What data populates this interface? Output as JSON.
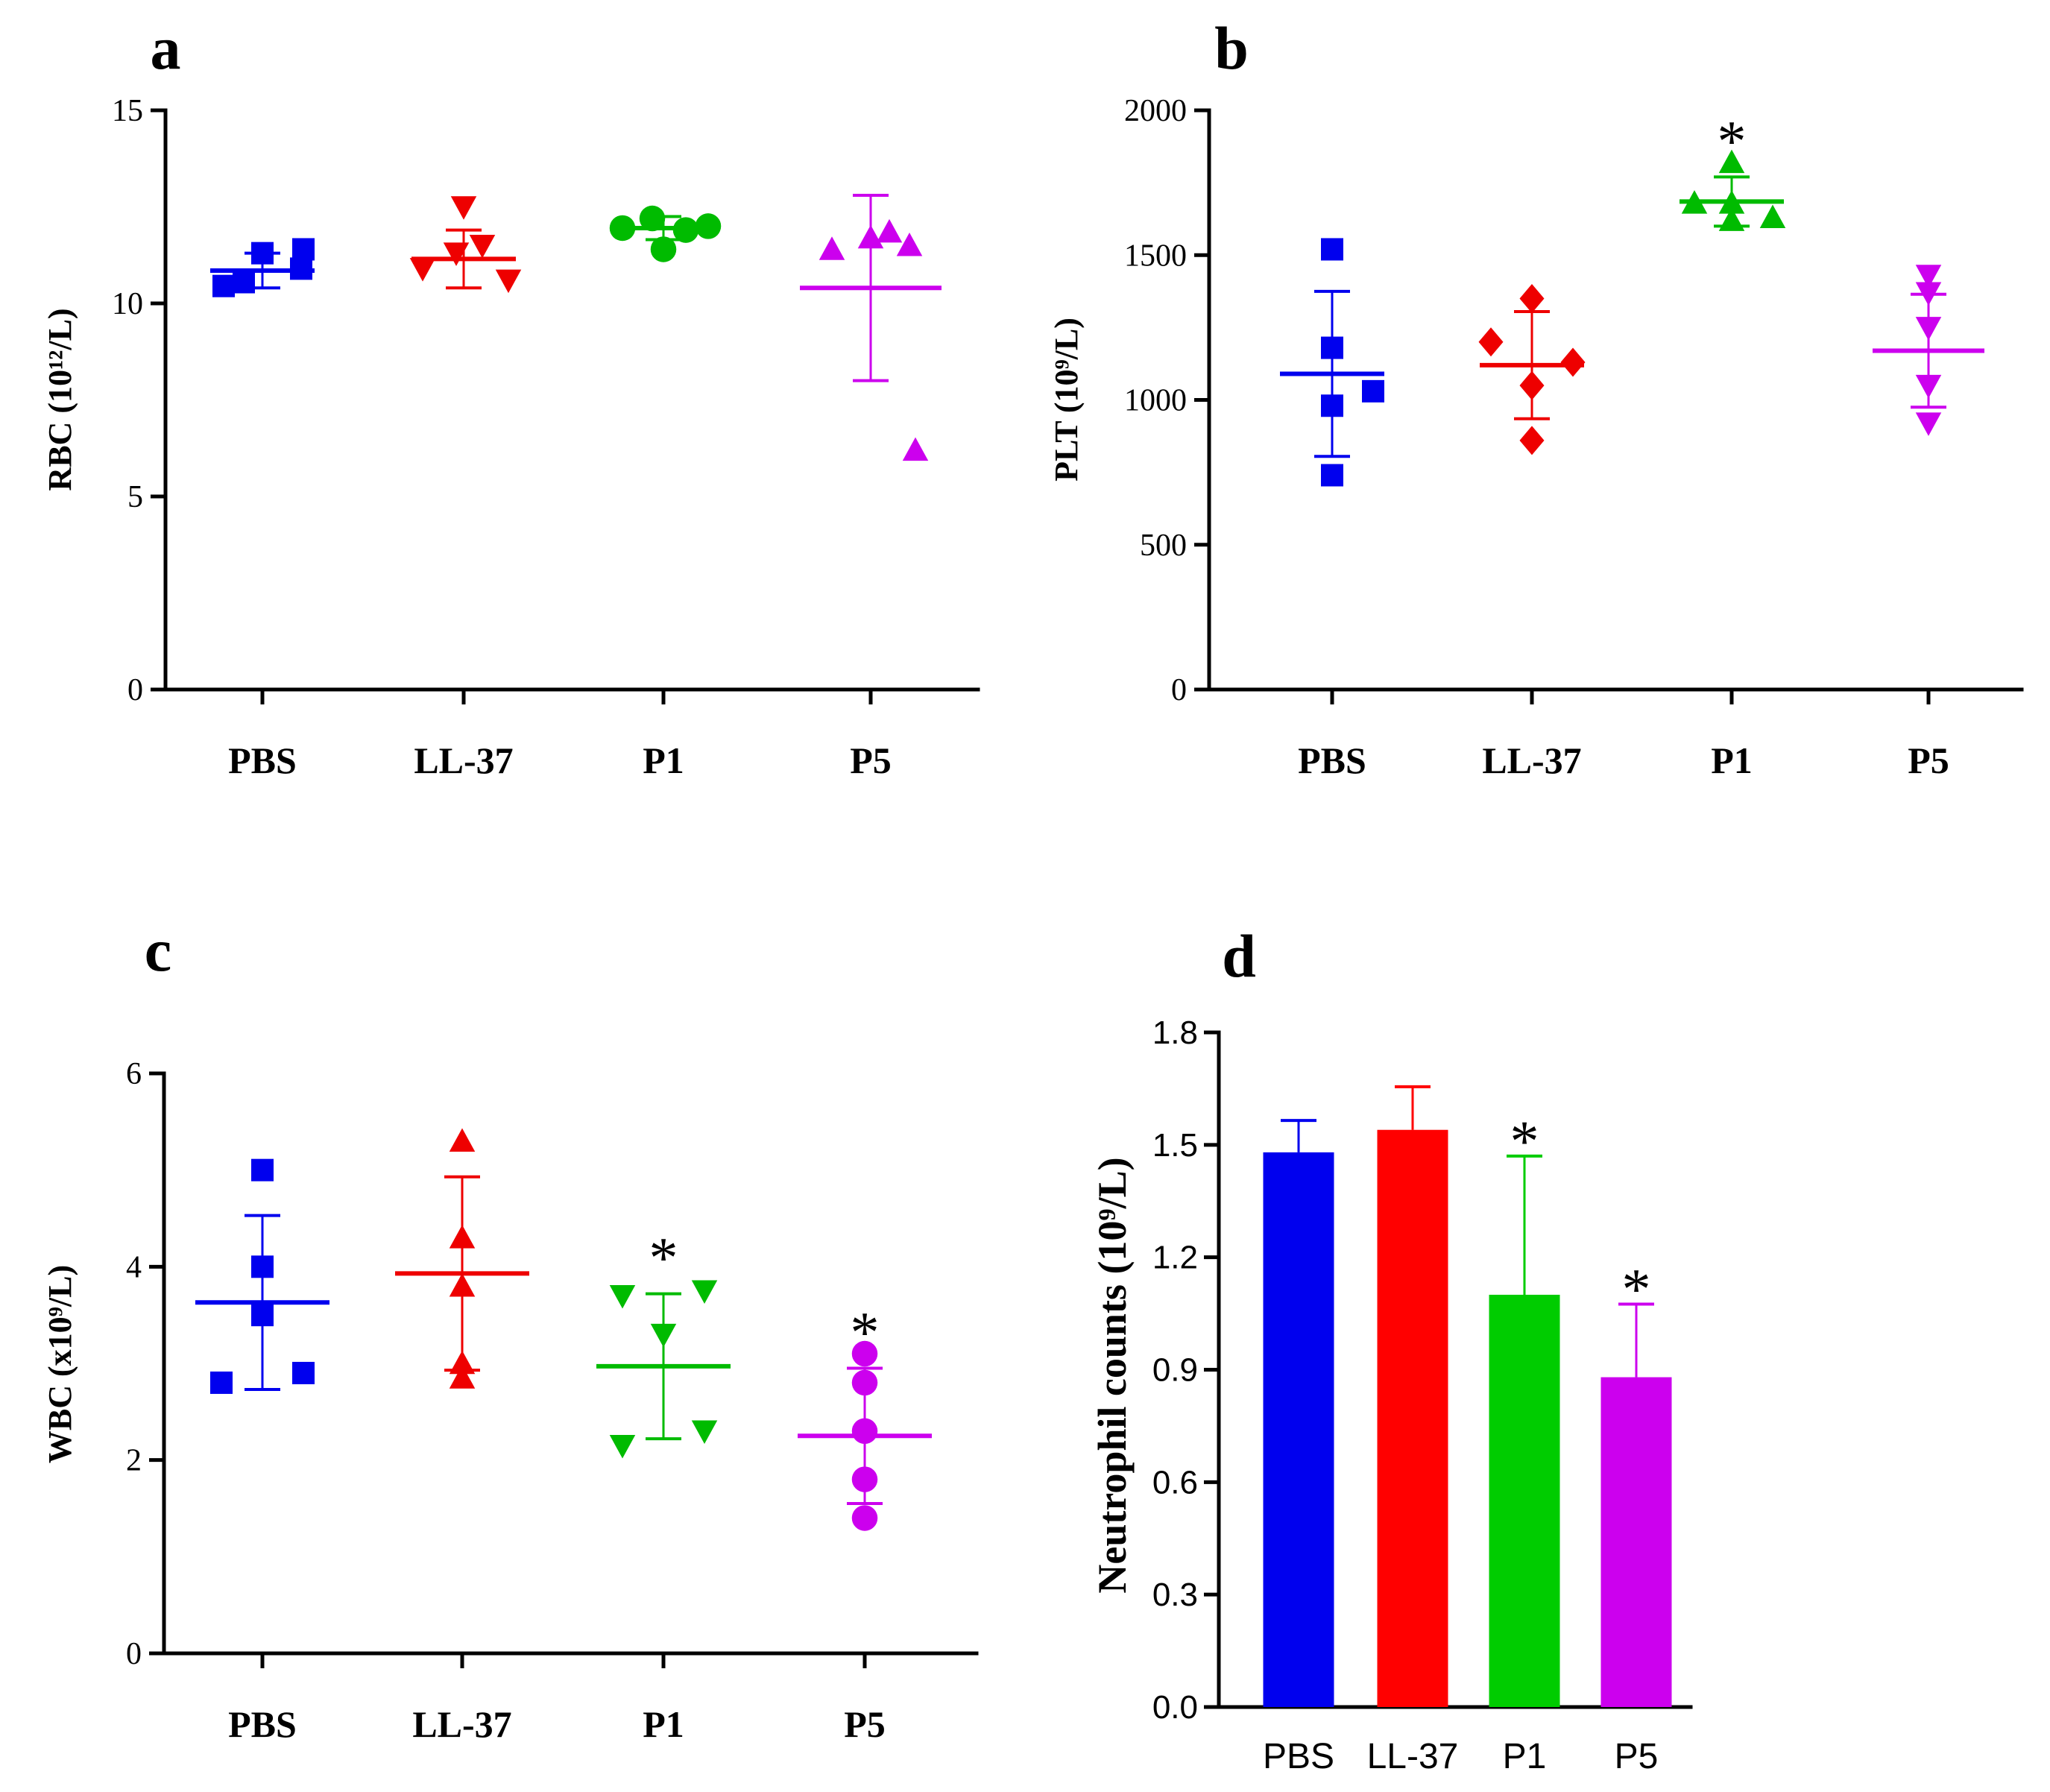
{
  "chart_data": [
    {
      "panel": "a",
      "type": "scatter",
      "ylabel": "RBC (10¹²/L)",
      "ylim": [
        0,
        15
      ],
      "yticks": [
        "0",
        "5",
        "10",
        "15"
      ],
      "categories": [
        "PBS",
        "LL-37",
        "P1",
        "P5"
      ],
      "colors": [
        "#0000ee",
        "#ee0000",
        "#00bb00",
        "#cc00ee"
      ],
      "markers": [
        "square",
        "triangle-down",
        "circle",
        "triangle-up"
      ],
      "points": [
        [
          10.45,
          10.9,
          11.3,
          10.55,
          11.4
        ],
        [
          10.9,
          11.3,
          12.5,
          11.5,
          10.6
        ],
        [
          11.95,
          12.2,
          11.4,
          11.9,
          12.0
        ],
        [
          11.4,
          11.5,
          11.7,
          11.85,
          6.2
        ]
      ],
      "mean": [
        10.85,
        11.15,
        11.95,
        10.4
      ],
      "err": [
        0.45,
        0.75,
        0.3,
        2.4
      ],
      "annotations": [
        "",
        "",
        "",
        ""
      ]
    },
    {
      "panel": "b",
      "type": "scatter",
      "ylabel": "PLT (10⁹/L)",
      "ylim": [
        0,
        2000
      ],
      "yticks": [
        "0",
        "500",
        "1000",
        "1500",
        "2000"
      ],
      "categories": [
        "PBS",
        "LL-37",
        "P1",
        "P5"
      ],
      "colors": [
        "#0000ee",
        "#ee0000",
        "#00bb00",
        "#cc00ee"
      ],
      "markers": [
        "square",
        "diamond",
        "triangle-up",
        "triangle-down"
      ],
      "points": [
        [
          1520,
          1180,
          1030,
          980,
          740
        ],
        [
          1200,
          1350,
          1130,
          1050,
          860
        ],
        [
          1680,
          1820,
          1680,
          1630,
          1620
        ],
        [
          1430,
          1370,
          1250,
          1050,
          920
        ]
      ],
      "mean": [
        1090,
        1120,
        1685,
        1170
      ],
      "err": [
        285,
        185,
        85,
        195
      ],
      "annotations": [
        "",
        "",
        "*",
        ""
      ]
    },
    {
      "panel": "c",
      "type": "scatter",
      "ylabel": "WBC (x10⁹/L)",
      "ylim": [
        0,
        6
      ],
      "yticks": [
        "0",
        "2",
        "4",
        "6"
      ],
      "categories": [
        "PBS",
        "LL-37",
        "P1",
        "P5"
      ],
      "colors": [
        "#0000ee",
        "#ee0000",
        "#00bb00",
        "#cc00ee"
      ],
      "markers": [
        "square",
        "triangle-up",
        "triangle-down",
        "circle"
      ],
      "points": [
        [
          5.0,
          4.0,
          3.5,
          2.9,
          2.8
        ],
        [
          5.3,
          4.3,
          3.8,
          3.0,
          2.85
        ],
        [
          3.7,
          3.75,
          3.3,
          2.3,
          2.15
        ],
        [
          3.1,
          2.8,
          2.3,
          1.8,
          1.4
        ]
      ],
      "mean": [
        3.63,
        3.93,
        2.97,
        2.25
      ],
      "err": [
        0.9,
        1.0,
        0.75,
        0.7
      ],
      "annotations": [
        "",
        "",
        "*",
        "*"
      ]
    },
    {
      "panel": "d",
      "type": "bar",
      "ylabel": "Neutrophil counts (10⁹/L)",
      "ylim": [
        0,
        1.8
      ],
      "yticks": [
        "0.0",
        "0.3",
        "0.6",
        "0.9",
        "1.2",
        "1.5",
        "1.8"
      ],
      "categories": [
        "PBS",
        "LL-37",
        "P1",
        "P5"
      ],
      "colors": [
        "#0000ee",
        "#ff0000",
        "#00cc00",
        "#cc00ee"
      ],
      "values": [
        1.48,
        1.54,
        1.1,
        0.88
      ],
      "err": [
        0.085,
        0.115,
        0.37,
        0.195
      ],
      "annotations": [
        "",
        "",
        "*",
        "*"
      ]
    }
  ]
}
